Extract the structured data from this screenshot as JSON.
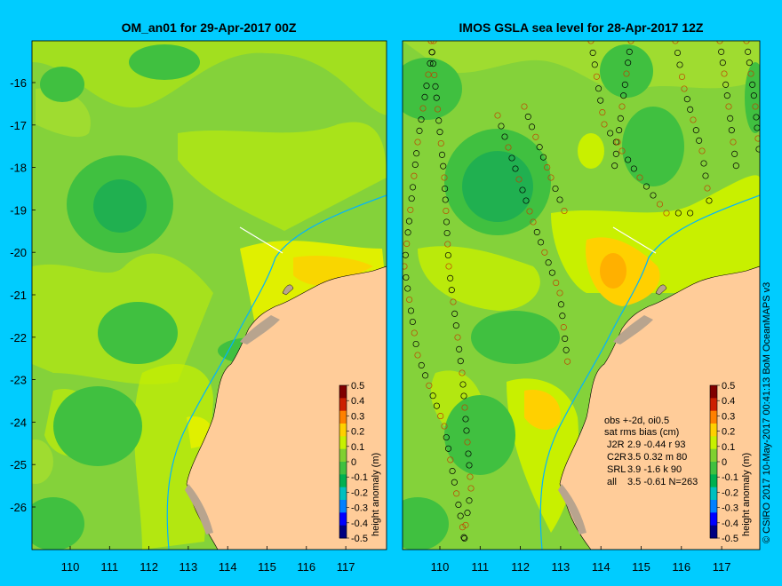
{
  "colors": {
    "background": "#00ccff",
    "land": "#ffcc99",
    "land_edge": "#b8a48e",
    "coast_line": "#000000",
    "track": "#00b4ff",
    "sea_base": "#84d23a",
    "anomaly_scale": [
      "#000080",
      "#0000ff",
      "#0080ff",
      "#00c0c0",
      "#00b050",
      "#40c040",
      "#80d030",
      "#c8f000",
      "#ffd000",
      "#ff8000",
      "#cc2000",
      "#800000"
    ]
  },
  "left_panel": {
    "title": "OM_an01 for 29-Apr-2017 00Z",
    "lat_ticks": [
      "-16",
      "-17",
      "-18",
      "-19",
      "-20",
      "-21",
      "-22",
      "-23",
      "-24",
      "-25",
      "-26"
    ],
    "lon_ticks": [
      "110",
      "111",
      "112",
      "113",
      "114",
      "115",
      "116",
      "117"
    ]
  },
  "right_panel": {
    "title": "IMOS GSLA sea level  for 28-Apr-2017 12Z",
    "lon_ticks": [
      "110",
      "111",
      "112",
      "113",
      "114",
      "115",
      "116",
      "117"
    ],
    "stats": {
      "line1": "obs +-2d, oi0.5",
      "line2": "sat rms bias (cm)",
      "rows": [
        {
          "sat": "J2R",
          "text": "2.9 -0.44 r 93"
        },
        {
          "sat": "C2R",
          "text": "3.5 0.32 m 80"
        },
        {
          "sat": "SRL",
          "text": "3.9 -1.6 k 90"
        },
        {
          "sat": "all",
          "text": "3.5 -0.61 N=263"
        }
      ]
    }
  },
  "colorbar": {
    "label": "height anomaly (m)",
    "ticks": [
      "0.5",
      "0.4",
      "0.3",
      "0.2",
      "0.1",
      "0",
      "-0.1",
      "-0.2",
      "-0.3",
      "-0.4",
      "-0.5"
    ]
  },
  "credit": "© CSIRO 2017   10-May-2017 00:41:13 BoM OceanMAPS v3"
}
